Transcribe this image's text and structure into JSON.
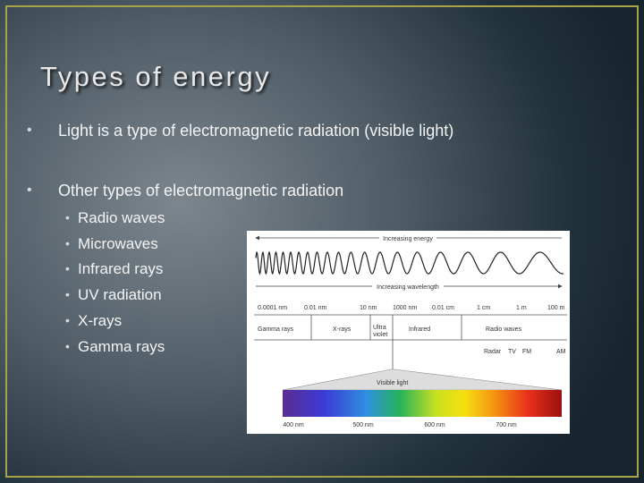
{
  "slide": {
    "title": "Types of energy",
    "bullets": [
      {
        "text": "Light is a type of electromagnetic radiation (visible light)"
      },
      {
        "text": "Other types of electromagnetic radiation",
        "sub": [
          "Radio waves",
          "Microwaves",
          "Infrared rays",
          "UV radiation",
          "X-rays",
          "Gamma rays"
        ]
      }
    ],
    "figure": {
      "energy_arrow": "Increasing energy",
      "wavelength_arrow": "Increasing wavelength",
      "scale": [
        "0.0001 nm",
        "0.01 nm",
        "10 nm",
        "1000 nm",
        "0.01 cm",
        "1 cm",
        "1 m",
        "100 m"
      ],
      "regions": [
        "Gamma rays",
        "X-rays",
        "Ultra",
        "violet",
        "Infrared",
        "Radio waves"
      ],
      "radio_bands": [
        "Radar",
        "TV",
        "FM",
        "AM"
      ],
      "visible_label": "Visible light",
      "visible_scale": [
        "400 nm",
        "500 nm",
        "600 nm",
        "700 nm"
      ]
    }
  }
}
